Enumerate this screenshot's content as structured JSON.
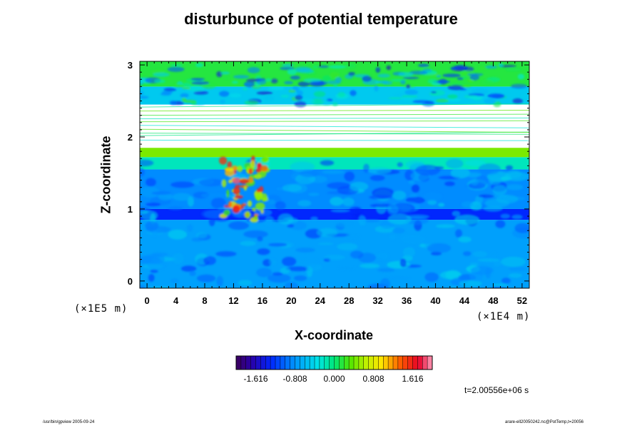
{
  "chart_data": {
    "type": "heatmap",
    "title": "disturbunce of potential temperature",
    "xlabel": "X-coordinate",
    "ylabel": "Z-coordinate",
    "x_exponent_label": "(×1E4 m)",
    "y_exponent_label": "(×1E5 m)",
    "xlim": [
      -1,
      53
    ],
    "ylim": [
      -0.1,
      3.05
    ],
    "x_ticks": [
      0,
      4,
      8,
      12,
      16,
      20,
      24,
      28,
      32,
      36,
      40,
      44,
      48,
      52
    ],
    "y_ticks": [
      0,
      1,
      2,
      3
    ],
    "colorbar": {
      "ticks": [
        "-1.616",
        "-0.808",
        "0.000",
        "0.808",
        "1.616"
      ],
      "min": -2.02,
      "max": 2.02,
      "n_levels": 40
    },
    "field_description_bands": [
      {
        "z_from": -0.1,
        "z_to": 0.85,
        "value": -0.75
      },
      {
        "z_from": 0.85,
        "z_to": 1.0,
        "value": -1.3
      },
      {
        "z_from": 1.0,
        "z_to": 1.55,
        "value": -0.85
      },
      {
        "z_from": 1.55,
        "z_to": 1.72,
        "value": -0.2
      },
      {
        "z_from": 1.72,
        "z_to": 1.85,
        "value": 0.45
      },
      {
        "z_from": 1.85,
        "z_to": 2.45,
        "value": null
      },
      {
        "z_from": 2.45,
        "z_to": 2.7,
        "value": -0.5
      },
      {
        "z_from": 2.7,
        "z_to": 3.05,
        "value": 0.15
      }
    ],
    "time_label": "t=2.00556e+06 s"
  },
  "footer": {
    "left": "/usr/bin/gpview 2005-09-24",
    "right": "arare-ell20050242.nc@PotTemp,t=20056"
  }
}
